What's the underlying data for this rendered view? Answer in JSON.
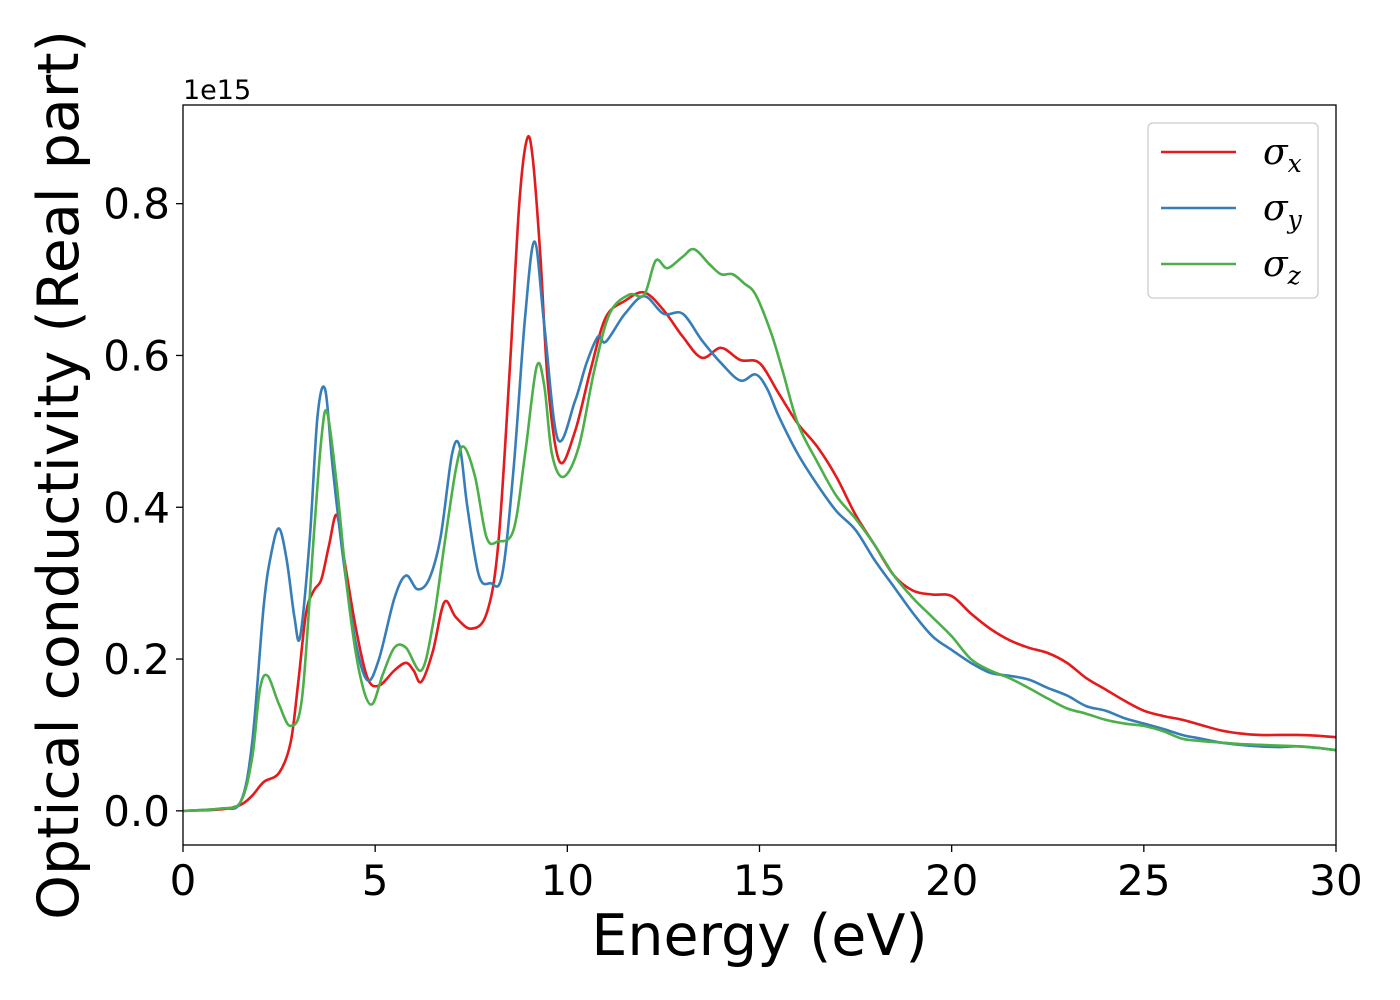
{
  "chart_data": {
    "type": "line",
    "xlabel": "Energy (eV)",
    "ylabel": "Optical conductivity (Real part)",
    "offset_text": "1e15",
    "xlim": [
      0,
      30
    ],
    "ylim": [
      -0.045,
      0.93
    ],
    "y_multiplier": 1000000000000000.0,
    "grid": false,
    "legend_position": "top-right",
    "x_ticks": [
      0,
      5,
      10,
      15,
      20,
      25,
      30
    ],
    "x_tick_labels": [
      "0",
      "5",
      "10",
      "15",
      "20",
      "25",
      "30"
    ],
    "y_ticks": [
      0.0,
      0.2,
      0.4,
      0.6,
      0.8
    ],
    "y_tick_labels": [
      "0.0",
      "0.2",
      "0.4",
      "0.6",
      "0.8"
    ],
    "series": [
      {
        "name": "σx",
        "symbol": "σ",
        "subscript": "x",
        "color": "#e41a1c",
        "points": [
          [
            0,
            0
          ],
          [
            1,
            0.002
          ],
          [
            1.5,
            0.008
          ],
          [
            1.8,
            0.02
          ],
          [
            2.1,
            0.038
          ],
          [
            2.5,
            0.05
          ],
          [
            2.8,
            0.09
          ],
          [
            3.0,
            0.17
          ],
          [
            3.2,
            0.26
          ],
          [
            3.4,
            0.29
          ],
          [
            3.6,
            0.305
          ],
          [
            3.8,
            0.35
          ],
          [
            4.0,
            0.39
          ],
          [
            4.2,
            0.33
          ],
          [
            4.5,
            0.24
          ],
          [
            4.8,
            0.175
          ],
          [
            5.1,
            0.165
          ],
          [
            5.5,
            0.185
          ],
          [
            5.8,
            0.195
          ],
          [
            6.0,
            0.185
          ],
          [
            6.2,
            0.17
          ],
          [
            6.5,
            0.21
          ],
          [
            6.8,
            0.275
          ],
          [
            7.1,
            0.255
          ],
          [
            7.5,
            0.24
          ],
          [
            7.9,
            0.26
          ],
          [
            8.2,
            0.35
          ],
          [
            8.5,
            0.58
          ],
          [
            8.75,
            0.8
          ],
          [
            8.95,
            0.885
          ],
          [
            9.1,
            0.86
          ],
          [
            9.3,
            0.73
          ],
          [
            9.5,
            0.56
          ],
          [
            9.8,
            0.46
          ],
          [
            10.2,
            0.5
          ],
          [
            10.6,
            0.58
          ],
          [
            11.0,
            0.65
          ],
          [
            11.5,
            0.672
          ],
          [
            12.0,
            0.683
          ],
          [
            12.5,
            0.66
          ],
          [
            13.0,
            0.625
          ],
          [
            13.5,
            0.597
          ],
          [
            14.0,
            0.61
          ],
          [
            14.5,
            0.594
          ],
          [
            15.0,
            0.59
          ],
          [
            15.5,
            0.55
          ],
          [
            16.0,
            0.51
          ],
          [
            16.5,
            0.48
          ],
          [
            17.0,
            0.44
          ],
          [
            17.5,
            0.39
          ],
          [
            18.0,
            0.35
          ],
          [
            18.5,
            0.31
          ],
          [
            19.0,
            0.29
          ],
          [
            19.5,
            0.285
          ],
          [
            20.0,
            0.283
          ],
          [
            20.5,
            0.26
          ],
          [
            21.0,
            0.24
          ],
          [
            21.5,
            0.225
          ],
          [
            22.0,
            0.215
          ],
          [
            22.5,
            0.208
          ],
          [
            23.0,
            0.195
          ],
          [
            23.5,
            0.175
          ],
          [
            24.0,
            0.16
          ],
          [
            24.5,
            0.145
          ],
          [
            25.0,
            0.132
          ],
          [
            25.5,
            0.125
          ],
          [
            26.0,
            0.12
          ],
          [
            26.5,
            0.113
          ],
          [
            27.0,
            0.106
          ],
          [
            27.5,
            0.102
          ],
          [
            28.0,
            0.1
          ],
          [
            28.5,
            0.1
          ],
          [
            29.0,
            0.1
          ],
          [
            29.5,
            0.099
          ],
          [
            30.0,
            0.097
          ]
        ]
      },
      {
        "name": "σy",
        "symbol": "σ",
        "subscript": "y",
        "color": "#377eb8",
        "points": [
          [
            0,
            0
          ],
          [
            1,
            0.003
          ],
          [
            1.5,
            0.012
          ],
          [
            1.8,
            0.09
          ],
          [
            2.1,
            0.27
          ],
          [
            2.3,
            0.34
          ],
          [
            2.5,
            0.372
          ],
          [
            2.7,
            0.33
          ],
          [
            2.9,
            0.255
          ],
          [
            3.05,
            0.23
          ],
          [
            3.3,
            0.36
          ],
          [
            3.5,
            0.52
          ],
          [
            3.7,
            0.555
          ],
          [
            3.9,
            0.45
          ],
          [
            4.2,
            0.32
          ],
          [
            4.5,
            0.22
          ],
          [
            4.8,
            0.172
          ],
          [
            5.1,
            0.2
          ],
          [
            5.5,
            0.28
          ],
          [
            5.8,
            0.31
          ],
          [
            6.1,
            0.292
          ],
          [
            6.4,
            0.305
          ],
          [
            6.7,
            0.36
          ],
          [
            7.0,
            0.47
          ],
          [
            7.2,
            0.48
          ],
          [
            7.4,
            0.4
          ],
          [
            7.7,
            0.31
          ],
          [
            8.0,
            0.3
          ],
          [
            8.3,
            0.31
          ],
          [
            8.6,
            0.45
          ],
          [
            8.9,
            0.65
          ],
          [
            9.15,
            0.75
          ],
          [
            9.4,
            0.64
          ],
          [
            9.75,
            0.49
          ],
          [
            10.2,
            0.54
          ],
          [
            10.5,
            0.59
          ],
          [
            10.8,
            0.625
          ],
          [
            11.0,
            0.618
          ],
          [
            11.5,
            0.655
          ],
          [
            12.0,
            0.678
          ],
          [
            12.5,
            0.655
          ],
          [
            13.0,
            0.655
          ],
          [
            13.5,
            0.62
          ],
          [
            14.0,
            0.59
          ],
          [
            14.5,
            0.567
          ],
          [
            14.9,
            0.575
          ],
          [
            15.2,
            0.556
          ],
          [
            15.5,
            0.52
          ],
          [
            16.0,
            0.47
          ],
          [
            16.5,
            0.43
          ],
          [
            17.0,
            0.395
          ],
          [
            17.5,
            0.37
          ],
          [
            18.0,
            0.33
          ],
          [
            18.5,
            0.295
          ],
          [
            19.0,
            0.26
          ],
          [
            19.5,
            0.23
          ],
          [
            20.0,
            0.212
          ],
          [
            20.5,
            0.195
          ],
          [
            21.0,
            0.182
          ],
          [
            21.5,
            0.178
          ],
          [
            22.0,
            0.173
          ],
          [
            22.5,
            0.162
          ],
          [
            23.0,
            0.152
          ],
          [
            23.5,
            0.138
          ],
          [
            24.0,
            0.132
          ],
          [
            24.5,
            0.122
          ],
          [
            25.0,
            0.115
          ],
          [
            25.5,
            0.108
          ],
          [
            26.0,
            0.1
          ],
          [
            26.5,
            0.095
          ],
          [
            27.0,
            0.09
          ],
          [
            27.5,
            0.087
          ],
          [
            28.0,
            0.085
          ],
          [
            28.5,
            0.084
          ],
          [
            29.0,
            0.085
          ],
          [
            29.5,
            0.083
          ],
          [
            30.0,
            0.08
          ]
        ]
      },
      {
        "name": "σz",
        "symbol": "σ",
        "subscript": "z",
        "color": "#4daf4a",
        "points": [
          [
            0,
            0
          ],
          [
            1,
            0.003
          ],
          [
            1.5,
            0.012
          ],
          [
            1.8,
            0.07
          ],
          [
            2.0,
            0.16
          ],
          [
            2.2,
            0.178
          ],
          [
            2.5,
            0.14
          ],
          [
            2.8,
            0.112
          ],
          [
            3.1,
            0.15
          ],
          [
            3.4,
            0.36
          ],
          [
            3.6,
            0.49
          ],
          [
            3.75,
            0.525
          ],
          [
            4.0,
            0.43
          ],
          [
            4.3,
            0.28
          ],
          [
            4.6,
            0.18
          ],
          [
            4.9,
            0.14
          ],
          [
            5.2,
            0.18
          ],
          [
            5.5,
            0.215
          ],
          [
            5.8,
            0.215
          ],
          [
            6.2,
            0.185
          ],
          [
            6.5,
            0.245
          ],
          [
            6.8,
            0.35
          ],
          [
            7.1,
            0.45
          ],
          [
            7.3,
            0.48
          ],
          [
            7.6,
            0.44
          ],
          [
            7.9,
            0.36
          ],
          [
            8.2,
            0.355
          ],
          [
            8.6,
            0.37
          ],
          [
            8.9,
            0.47
          ],
          [
            9.2,
            0.585
          ],
          [
            9.4,
            0.56
          ],
          [
            9.6,
            0.47
          ],
          [
            9.9,
            0.44
          ],
          [
            10.3,
            0.48
          ],
          [
            10.7,
            0.58
          ],
          [
            11.1,
            0.655
          ],
          [
            11.6,
            0.68
          ],
          [
            12.0,
            0.68
          ],
          [
            12.3,
            0.725
          ],
          [
            12.6,
            0.715
          ],
          [
            13.0,
            0.73
          ],
          [
            13.3,
            0.74
          ],
          [
            13.7,
            0.72
          ],
          [
            14.0,
            0.707
          ],
          [
            14.3,
            0.707
          ],
          [
            14.6,
            0.695
          ],
          [
            14.9,
            0.68
          ],
          [
            15.3,
            0.63
          ],
          [
            15.6,
            0.58
          ],
          [
            16.0,
            0.51
          ],
          [
            16.5,
            0.46
          ],
          [
            17.0,
            0.415
          ],
          [
            17.5,
            0.385
          ],
          [
            18.0,
            0.35
          ],
          [
            18.5,
            0.31
          ],
          [
            19.0,
            0.28
          ],
          [
            19.5,
            0.255
          ],
          [
            20.0,
            0.23
          ],
          [
            20.5,
            0.2
          ],
          [
            21.0,
            0.185
          ],
          [
            21.5,
            0.175
          ],
          [
            22.0,
            0.162
          ],
          [
            22.5,
            0.148
          ],
          [
            23.0,
            0.135
          ],
          [
            23.5,
            0.128
          ],
          [
            24.0,
            0.12
          ],
          [
            24.5,
            0.115
          ],
          [
            25.0,
            0.112
          ],
          [
            25.5,
            0.105
          ],
          [
            26.0,
            0.095
          ],
          [
            26.5,
            0.092
          ],
          [
            27.0,
            0.09
          ],
          [
            27.5,
            0.088
          ],
          [
            28.0,
            0.087
          ],
          [
            28.5,
            0.086
          ],
          [
            29.0,
            0.085
          ],
          [
            29.5,
            0.083
          ],
          [
            30.0,
            0.08
          ]
        ]
      }
    ]
  }
}
